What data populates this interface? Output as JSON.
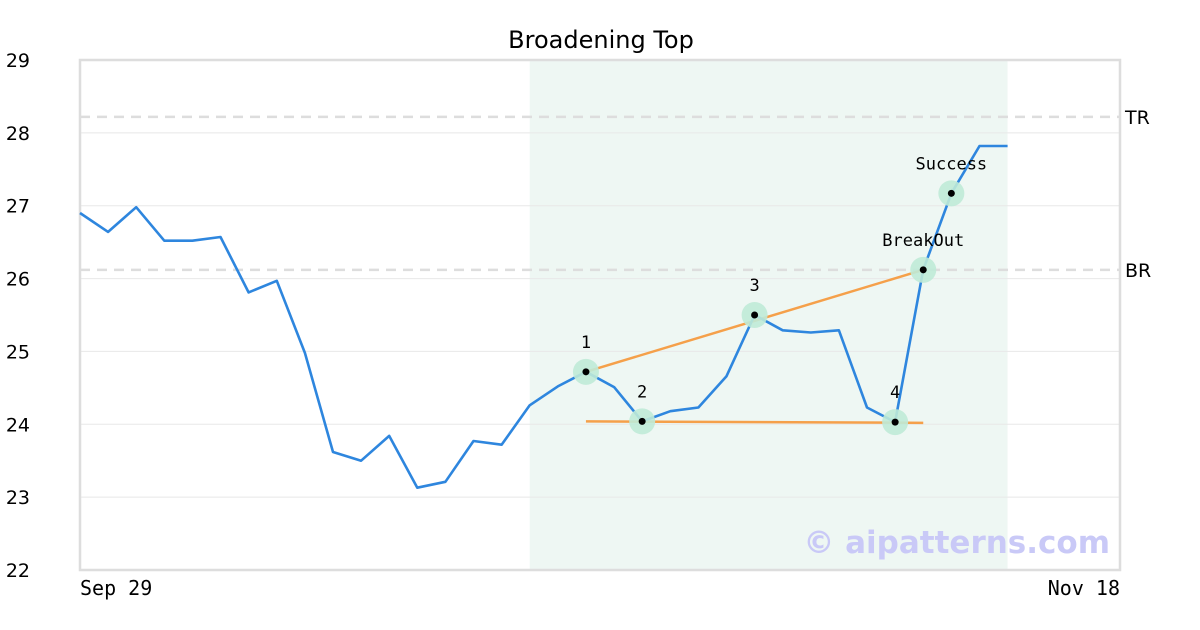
{
  "chart_data": {
    "type": "line",
    "title": "Broadening Top",
    "ylim": [
      22,
      29
    ],
    "yticks": [
      22,
      23,
      24,
      25,
      26,
      27,
      28,
      29
    ],
    "x_tick_labels": [
      "Sep 29",
      "Nov 18"
    ],
    "x_range": [
      0,
      37
    ],
    "grid": true,
    "highlight_range": [
      16,
      33
    ],
    "series": [
      {
        "values": [
          26.9,
          26.64,
          26.98,
          26.52,
          26.52,
          26.57,
          25.81,
          25.97,
          24.98,
          23.62,
          23.5,
          23.84,
          23.13,
          23.21,
          23.77,
          23.72,
          24.26,
          24.52,
          24.72,
          24.51,
          24.04,
          24.18,
          24.23,
          24.66,
          25.5,
          25.29,
          25.26,
          25.29,
          24.23,
          24.03,
          26.12,
          27.17,
          27.82,
          27.82
        ]
      }
    ],
    "reference_lines": [
      {
        "label": "TR",
        "value": 28.22
      },
      {
        "label": "BR",
        "value": 26.12
      }
    ],
    "trend_lines": [
      {
        "x1": 18,
        "y1": 24.72,
        "x2": 30,
        "y2": 26.12
      },
      {
        "x1": 18,
        "y1": 24.04,
        "x2": 30,
        "y2": 24.02
      }
    ],
    "points": [
      {
        "label": "1",
        "x": 18,
        "y": 24.72
      },
      {
        "label": "2",
        "x": 20,
        "y": 24.04
      },
      {
        "label": "3",
        "x": 24,
        "y": 25.5
      },
      {
        "label": "4",
        "x": 29,
        "y": 24.03
      },
      {
        "label": "BreakOut",
        "x": 30,
        "y": 26.12
      },
      {
        "label": "Success",
        "x": 31,
        "y": 27.17
      }
    ]
  },
  "watermark": "© aipatterns.com",
  "colors": {
    "price_line": "#2e86de",
    "trend_line": "#f5a04a",
    "highlight": "#eef7f3",
    "marker_halo": "#bfead7",
    "reference_line": "#dddddd",
    "grid": "#e8e8e8",
    "frame": "#dddddd"
  }
}
